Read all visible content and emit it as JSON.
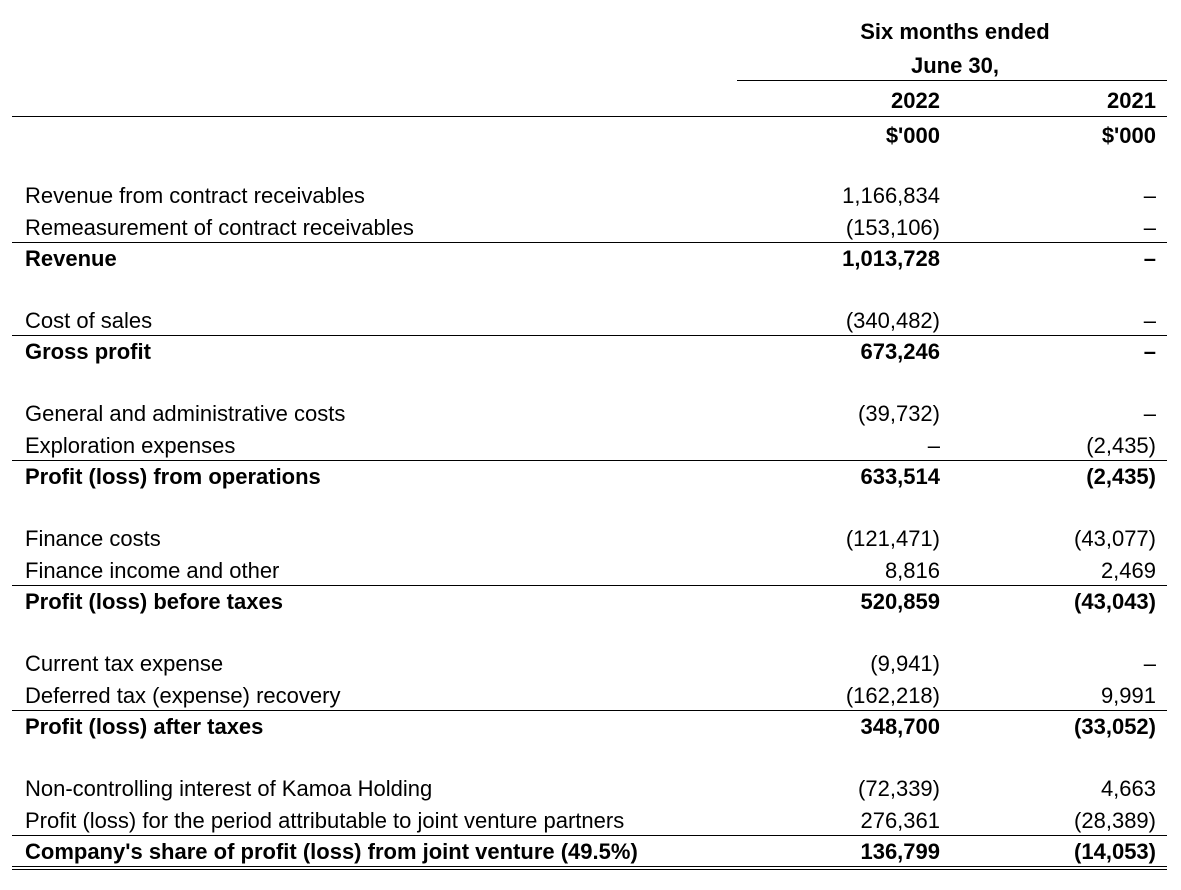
{
  "header": {
    "title": "Six months ended",
    "subtitle": "June 30,",
    "columns": [
      "2022",
      "2021"
    ],
    "units": [
      "$'000",
      "$'000"
    ]
  },
  "groups": [
    {
      "items": [
        [
          "Revenue from contract receivables",
          "1,166,834",
          "–"
        ],
        [
          "Remeasurement of contract receivables",
          "(153,106)",
          "–"
        ]
      ],
      "total": [
        "Revenue",
        "1,013,728",
        "–"
      ]
    },
    {
      "items": [
        [
          "Cost of sales",
          "(340,482)",
          "–"
        ]
      ],
      "total": [
        "Gross profit",
        "673,246",
        "–"
      ]
    },
    {
      "items": [
        [
          "General and administrative costs",
          "(39,732)",
          "–"
        ],
        [
          "Exploration expenses",
          "–",
          "(2,435)"
        ]
      ],
      "total": [
        "Profit (loss) from operations",
        "633,514",
        "(2,435)"
      ]
    },
    {
      "items": [
        [
          "Finance costs",
          "(121,471)",
          "(43,077)"
        ],
        [
          "Finance income and other",
          "8,816",
          "2,469"
        ]
      ],
      "total": [
        "Profit (loss) before taxes",
        "520,859",
        "(43,043)"
      ]
    },
    {
      "items": [
        [
          "Current tax expense",
          "(9,941)",
          "–"
        ],
        [
          "Deferred tax (expense) recovery",
          "(162,218)",
          "9,991"
        ]
      ],
      "total": [
        "Profit (loss) after taxes",
        "348,700",
        "(33,052)"
      ]
    },
    {
      "items": [
        [
          "Non-controlling interest of Kamoa Holding",
          "(72,339)",
          "4,663"
        ],
        [
          "Profit (loss) for the period attributable to joint venture partners",
          "276,361",
          "(28,389)"
        ]
      ],
      "total": [
        "Company's share of profit (loss) from joint venture (49.5%)",
        "136,799",
        "(14,053)"
      ]
    }
  ]
}
